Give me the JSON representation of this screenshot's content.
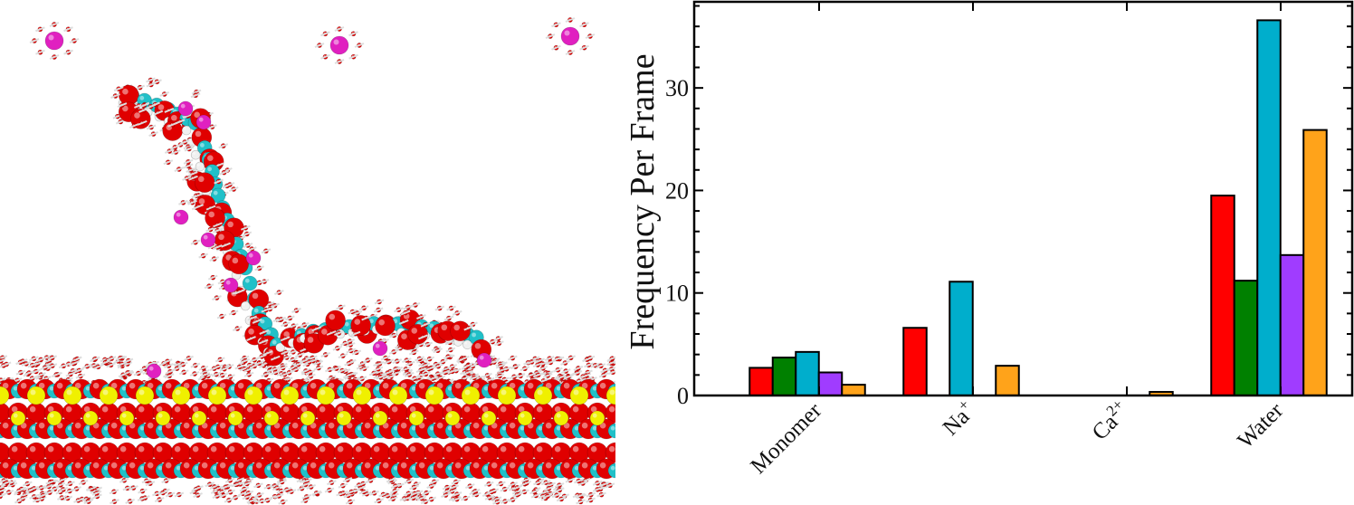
{
  "figure": {
    "left_panel": "molecular-simulation-snapshot",
    "molecule_colors": {
      "oxygen": "#e00000",
      "carbon": "#20c0c8",
      "hydrogen": "#f0f0f0",
      "calcium": "#f0f000",
      "sodium": "#e020c0"
    }
  },
  "chart_data": {
    "type": "bar",
    "categories": [
      "Monomer",
      "Na+",
      "Ca2+",
      "Water"
    ],
    "category_labels": [
      {
        "base": "Monomer",
        "sup": ""
      },
      {
        "base": "Na",
        "sup": "+"
      },
      {
        "base": "Ca",
        "sup": "2+"
      },
      {
        "base": "Water",
        "sup": ""
      }
    ],
    "series": [
      {
        "color": "#ff0000",
        "values": [
          2.7,
          6.6,
          0,
          19.5
        ]
      },
      {
        "color": "#008000",
        "values": [
          3.7,
          0,
          0,
          11.2
        ]
      },
      {
        "color": "#00aecc",
        "values": [
          4.25,
          11.1,
          0,
          36.6
        ]
      },
      {
        "color": "#a03cff",
        "values": [
          2.25,
          0,
          0,
          13.7
        ]
      },
      {
        "color": "#ffa31a",
        "values": [
          1.05,
          2.9,
          0.35,
          25.9
        ]
      }
    ],
    "xlabel": "",
    "ylabel": "Frequency Per Frame",
    "ylim": [
      0,
      38.4
    ],
    "yticks": [
      "0",
      "10",
      "20",
      "30"
    ],
    "grid": false,
    "legend": "none"
  }
}
